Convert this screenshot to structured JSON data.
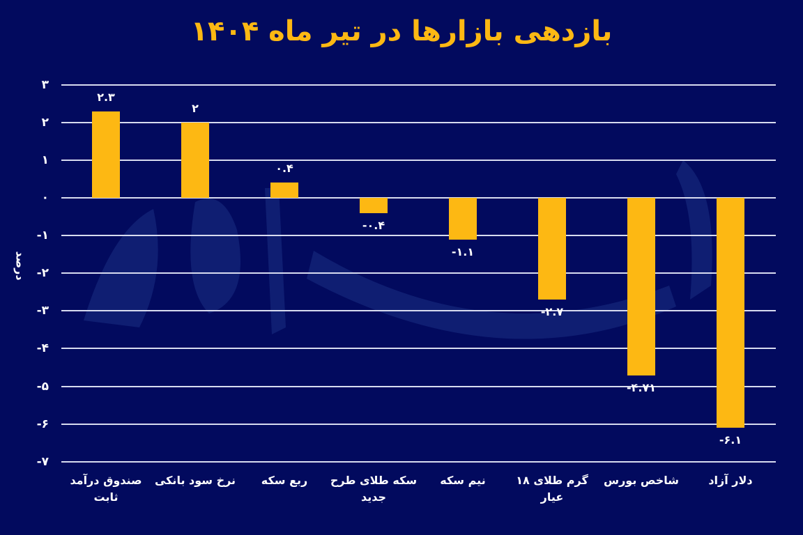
{
  "title": "بازدهی بازارها در تیر ماه ۱۴۰۴",
  "y_axis_label": "درصد",
  "colors": {
    "background": "#020a5e",
    "bar": "#fdb813",
    "title": "#fdb813",
    "grid": "#d8dcf0",
    "text": "#ffffff"
  },
  "y_ticks": [
    {
      "value": 3,
      "label": "۳"
    },
    {
      "value": 2,
      "label": "۲"
    },
    {
      "value": 1,
      "label": "۱"
    },
    {
      "value": 0,
      "label": "۰"
    },
    {
      "value": -1,
      "label": "-۱"
    },
    {
      "value": -2,
      "label": "-۲"
    },
    {
      "value": -3,
      "label": "-۳"
    },
    {
      "value": -4,
      "label": "-۴"
    },
    {
      "value": -5,
      "label": "-۵"
    },
    {
      "value": -6,
      "label": "-۶"
    },
    {
      "value": -7,
      "label": "-۷"
    }
  ],
  "bars": [
    {
      "category": "صندوق درآمد ثابت",
      "line1": "صندوق درآمد",
      "line2": "ثابت",
      "value": 2.3,
      "label": "۲.۳"
    },
    {
      "category": "نرخ سود بانکی",
      "line1": "نرخ سود بانکی",
      "line2": "",
      "value": 2,
      "label": "۲"
    },
    {
      "category": "ربع سکه",
      "line1": "ربع سکه",
      "line2": "",
      "value": 0.4,
      "label": "۰.۴"
    },
    {
      "category": "سکه طلای طرح جدید",
      "line1": "سکه طلای طرح",
      "line2": "جدید",
      "value": -0.4,
      "label": "-۰.۴"
    },
    {
      "category": "نیم سکه",
      "line1": "نیم سکه",
      "line2": "",
      "value": -1.1,
      "label": "-۱.۱"
    },
    {
      "category": "گرم طلای ۱۸ عیار",
      "line1": "گرم طلای ۱۸ عیار",
      "line2": "",
      "value": -2.7,
      "label": "-۲.۷"
    },
    {
      "category": "شاخص بورس",
      "line1": "شاخص بورس",
      "line2": "",
      "value": -4.71,
      "label": "-۴.۷۱"
    },
    {
      "category": "دلار آزاد",
      "line1": "دلار آزاد",
      "line2": "",
      "value": -6.1,
      "label": "-۶.۱"
    }
  ],
  "chart_data": {
    "type": "bar",
    "title": "بازدهی بازارها در تیر ماه ۱۴۰۴",
    "xlabel": "",
    "ylabel": "درصد",
    "categories": [
      "صندوق درآمد ثابت",
      "نرخ سود بانکی",
      "ربع سکه",
      "سکه طلای طرح جدید",
      "نیم سکه",
      "گرم طلای ۱۸ عیار",
      "شاخص بورس",
      "دلار آزاد"
    ],
    "values": [
      2.3,
      2,
      0.4,
      -0.4,
      -1.1,
      -2.7,
      -4.71,
      -6.1
    ],
    "data_labels": [
      "۲.۳",
      "۲",
      "۰.۴",
      "-۰.۴",
      "-۱.۱",
      "-۲.۷",
      "-۴.۷۱",
      "-۶.۱"
    ],
    "ylim": [
      -7,
      3
    ],
    "yticks": [
      3,
      2,
      1,
      0,
      -1,
      -2,
      -3,
      -4,
      -5,
      -6,
      -7
    ],
    "grid": true,
    "legend": null,
    "bar_color": "#fdb813"
  }
}
